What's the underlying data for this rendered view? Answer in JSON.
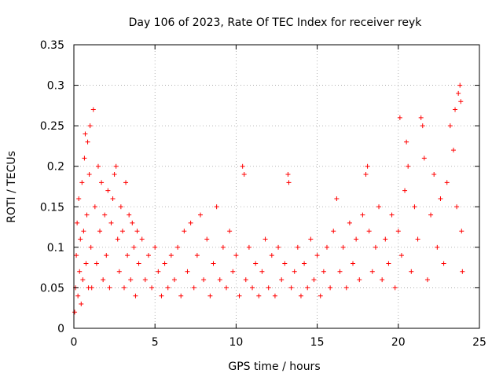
{
  "chart_data": {
    "type": "scatter",
    "title": "Day 106 of 2023, Rate Of TEC Index for receiver reyk",
    "xlabel": "GPS time / hours",
    "ylabel": "ROTI / TECUs",
    "xlim": [
      0,
      25
    ],
    "ylim": [
      0,
      0.35
    ],
    "xticks": [
      "0",
      "5",
      "10",
      "15",
      "20",
      "25"
    ],
    "xtick_values": [
      0,
      5,
      10,
      15,
      20,
      25
    ],
    "yticks": [
      "0",
      "0.05",
      "0.1",
      "0.15",
      "0.2",
      "0.25",
      "0.3",
      "0.35"
    ],
    "ytick_values": [
      0,
      0.05,
      0.1,
      0.15,
      0.2,
      0.25,
      0.3,
      0.35
    ],
    "grid": true,
    "marker": "+",
    "series": [
      {
        "name": "ROTI",
        "color": "#ff0000",
        "points": [
          [
            0.05,
            0.02
          ],
          [
            0.1,
            0.05
          ],
          [
            0.15,
            0.09
          ],
          [
            0.2,
            0.13
          ],
          [
            0.25,
            0.04
          ],
          [
            0.3,
            0.16
          ],
          [
            0.35,
            0.07
          ],
          [
            0.4,
            0.11
          ],
          [
            0.45,
            0.03
          ],
          [
            0.5,
            0.18
          ],
          [
            0.55,
            0.06
          ],
          [
            0.6,
            0.12
          ],
          [
            0.65,
            0.21
          ],
          [
            0.7,
            0.24
          ],
          [
            0.75,
            0.08
          ],
          [
            0.8,
            0.14
          ],
          [
            0.85,
            0.23
          ],
          [
            0.9,
            0.05
          ],
          [
            0.95,
            0.19
          ],
          [
            1.0,
            0.25
          ],
          [
            1.05,
            0.1
          ],
          [
            1.1,
            0.05
          ],
          [
            1.2,
            0.27
          ],
          [
            1.3,
            0.15
          ],
          [
            1.4,
            0.08
          ],
          [
            1.5,
            0.2
          ],
          [
            1.6,
            0.12
          ],
          [
            1.7,
            0.18
          ],
          [
            1.8,
            0.06
          ],
          [
            1.9,
            0.14
          ],
          [
            2.0,
            0.09
          ],
          [
            2.1,
            0.17
          ],
          [
            2.2,
            0.05
          ],
          [
            2.3,
            0.13
          ],
          [
            2.4,
            0.16
          ],
          [
            2.5,
            0.19
          ],
          [
            2.6,
            0.2
          ],
          [
            2.7,
            0.11
          ],
          [
            2.8,
            0.07
          ],
          [
            2.9,
            0.15
          ],
          [
            3.0,
            0.12
          ],
          [
            3.1,
            0.05
          ],
          [
            3.2,
            0.18
          ],
          [
            3.3,
            0.09
          ],
          [
            3.4,
            0.14
          ],
          [
            3.5,
            0.06
          ],
          [
            3.6,
            0.13
          ],
          [
            3.7,
            0.1
          ],
          [
            3.8,
            0.04
          ],
          [
            3.9,
            0.12
          ],
          [
            4.0,
            0.08
          ],
          [
            4.2,
            0.11
          ],
          [
            4.4,
            0.06
          ],
          [
            4.6,
            0.09
          ],
          [
            4.8,
            0.05
          ],
          [
            5.0,
            0.1
          ],
          [
            5.2,
            0.07
          ],
          [
            5.4,
            0.04
          ],
          [
            5.6,
            0.08
          ],
          [
            5.8,
            0.05
          ],
          [
            6.0,
            0.09
          ],
          [
            6.2,
            0.06
          ],
          [
            6.4,
            0.1
          ],
          [
            6.6,
            0.04
          ],
          [
            6.8,
            0.12
          ],
          [
            7.0,
            0.07
          ],
          [
            7.2,
            0.13
          ],
          [
            7.4,
            0.05
          ],
          [
            7.6,
            0.09
          ],
          [
            7.8,
            0.14
          ],
          [
            8.0,
            0.06
          ],
          [
            8.2,
            0.11
          ],
          [
            8.4,
            0.04
          ],
          [
            8.6,
            0.08
          ],
          [
            8.8,
            0.15
          ],
          [
            9.0,
            0.06
          ],
          [
            9.2,
            0.1
          ],
          [
            9.4,
            0.05
          ],
          [
            9.6,
            0.12
          ],
          [
            9.8,
            0.07
          ],
          [
            10.0,
            0.09
          ],
          [
            10.2,
            0.04
          ],
          [
            10.4,
            0.2
          ],
          [
            10.5,
            0.19
          ],
          [
            10.6,
            0.06
          ],
          [
            10.8,
            0.1
          ],
          [
            11.0,
            0.05
          ],
          [
            11.2,
            0.08
          ],
          [
            11.4,
            0.04
          ],
          [
            11.6,
            0.07
          ],
          [
            11.8,
            0.11
          ],
          [
            12.0,
            0.05
          ],
          [
            12.2,
            0.09
          ],
          [
            12.4,
            0.04
          ],
          [
            12.6,
            0.1
          ],
          [
            12.8,
            0.06
          ],
          [
            13.0,
            0.08
          ],
          [
            13.2,
            0.19
          ],
          [
            13.25,
            0.18
          ],
          [
            13.4,
            0.05
          ],
          [
            13.6,
            0.07
          ],
          [
            13.8,
            0.1
          ],
          [
            14.0,
            0.04
          ],
          [
            14.2,
            0.08
          ],
          [
            14.4,
            0.05
          ],
          [
            14.6,
            0.11
          ],
          [
            14.8,
            0.06
          ],
          [
            15.0,
            0.09
          ],
          [
            15.2,
            0.04
          ],
          [
            15.4,
            0.07
          ],
          [
            15.6,
            0.1
          ],
          [
            15.8,
            0.05
          ],
          [
            16.0,
            0.12
          ],
          [
            16.2,
            0.16
          ],
          [
            16.4,
            0.07
          ],
          [
            16.6,
            0.1
          ],
          [
            16.8,
            0.05
          ],
          [
            17.0,
            0.13
          ],
          [
            17.2,
            0.08
          ],
          [
            17.4,
            0.11
          ],
          [
            17.6,
            0.06
          ],
          [
            17.8,
            0.14
          ],
          [
            18.0,
            0.19
          ],
          [
            18.1,
            0.2
          ],
          [
            18.2,
            0.12
          ],
          [
            18.4,
            0.07
          ],
          [
            18.6,
            0.1
          ],
          [
            18.8,
            0.15
          ],
          [
            19.0,
            0.06
          ],
          [
            19.2,
            0.11
          ],
          [
            19.4,
            0.08
          ],
          [
            19.6,
            0.14
          ],
          [
            19.8,
            0.05
          ],
          [
            20.0,
            0.12
          ],
          [
            20.1,
            0.26
          ],
          [
            20.2,
            0.09
          ],
          [
            20.4,
            0.17
          ],
          [
            20.5,
            0.23
          ],
          [
            20.6,
            0.2
          ],
          [
            20.8,
            0.07
          ],
          [
            21.0,
            0.15
          ],
          [
            21.2,
            0.11
          ],
          [
            21.4,
            0.26
          ],
          [
            21.5,
            0.25
          ],
          [
            21.6,
            0.21
          ],
          [
            21.8,
            0.06
          ],
          [
            22.0,
            0.14
          ],
          [
            22.2,
            0.19
          ],
          [
            22.4,
            0.1
          ],
          [
            22.6,
            0.16
          ],
          [
            22.8,
            0.08
          ],
          [
            23.0,
            0.18
          ],
          [
            23.2,
            0.25
          ],
          [
            23.4,
            0.22
          ],
          [
            23.5,
            0.27
          ],
          [
            23.6,
            0.15
          ],
          [
            23.7,
            0.29
          ],
          [
            23.8,
            0.3
          ],
          [
            23.85,
            0.28
          ],
          [
            23.9,
            0.12
          ],
          [
            23.95,
            0.07
          ]
        ]
      }
    ]
  }
}
